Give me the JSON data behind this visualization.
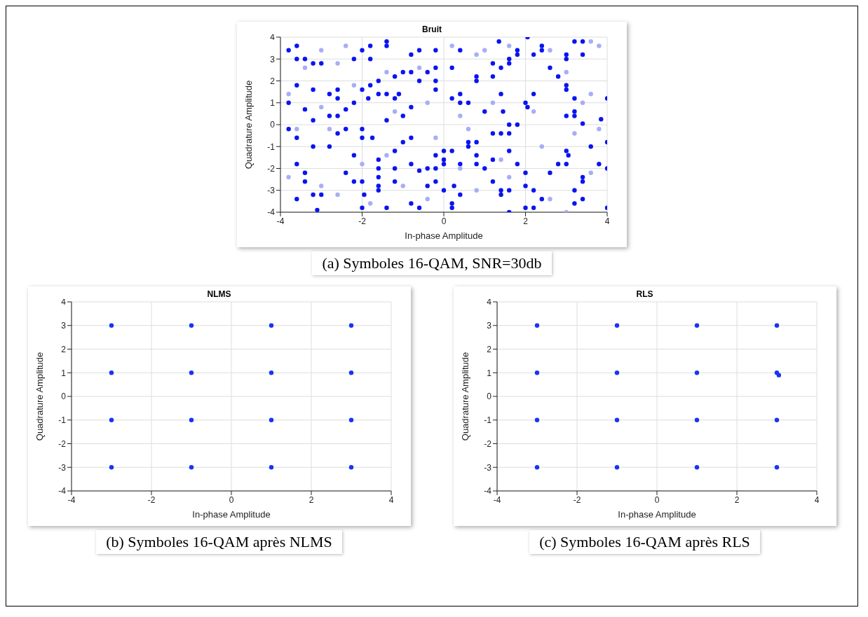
{
  "chart_data": [
    {
      "type": "scatter",
      "title": "Bruit",
      "xlabel": "In-phase Amplitude",
      "ylabel": "Quadrature Amplitude",
      "xlim": [
        -4,
        4
      ],
      "ylim": [
        -4,
        4
      ],
      "xticks": [
        -4,
        -2,
        0,
        2,
        4
      ],
      "yticks": [
        -4,
        -3,
        -2,
        -1,
        0,
        1,
        2,
        3,
        4
      ],
      "grid": true,
      "marker": "circle",
      "annotations": [
        "(a) Symboles  16-QAM, SNR=30db"
      ],
      "series": [
        {
          "color": "#0a14f0",
          "x": [
            -3.6,
            -3.6,
            -3.8,
            -3.4,
            -3.2,
            -3.0,
            -3.2,
            -2.8,
            -3.6,
            -3.8,
            -3.4,
            -3.2,
            -3.8,
            -3.6,
            -3.2,
            -2.8,
            -3.6,
            -3.4,
            -3.4,
            -3.2,
            -3.0,
            -3.6,
            -3.1,
            -2.6,
            -2.6,
            -2.4,
            -2.2,
            -2.8,
            -2.6,
            -2.6,
            -2.4,
            -2.2,
            -2.4,
            -2.2,
            -2.0,
            -1.95,
            -2.0,
            -2.2,
            -2.0,
            -1.8,
            -1.8,
            -1.8,
            -2.0,
            -1.85,
            -1.6,
            -1.4,
            -1.6,
            -1.4,
            -1.4,
            -1.2,
            -1.0,
            -0.8,
            -1.1,
            -1.2,
            -1.0,
            -0.8,
            -1.4,
            -2.0,
            -2.0,
            -1.75,
            -0.8,
            -1.0,
            -1.2,
            -1.6,
            -1.6,
            -1.2,
            -1.6,
            -1.6,
            -1.6,
            -1.4,
            -1.2,
            -0.8,
            -0.6,
            -0.8,
            -0.6,
            -0.4,
            -0.4,
            -0.2,
            -0.2,
            -0.2,
            0,
            0.2,
            0,
            0,
            0,
            0.2,
            0.2,
            0.4,
            0.25,
            0.4,
            0.6,
            0.6,
            0.8,
            0.8,
            0.8,
            1.0,
            1.2,
            1.2,
            1.2,
            1.4,
            1.6,
            1.6,
            1.8,
            1.6,
            1.4,
            1.4,
            1.6,
            1.6,
            1.8,
            2.0,
            2.0,
            2.0,
            2.2,
            2.2,
            2.4,
            2.6,
            2.8,
            3.0,
            3.05,
            3.0,
            3.2,
            3.2,
            3.4,
            3.4,
            3.4,
            3.8,
            4.0,
            4.0,
            4.0,
            3.6,
            3.2,
            3.0,
            3.2,
            3.4,
            3.85,
            4.0,
            3.2,
            3.0,
            3.0,
            2.8,
            2.6,
            2.4,
            2.4,
            2.2,
            2.05,
            3.0,
            3.0,
            3.2,
            3.4,
            3.4,
            2.2,
            2.0,
            2.05,
            1.8,
            1.8,
            1.6,
            1.6,
            1.4,
            1.4,
            1.2,
            1.2,
            1.35,
            0.8,
            0.8,
            0.6,
            0.4,
            0.2,
            0.4,
            0.2,
            0.4,
            -0.2,
            -0.2,
            -0.2,
            -0.2,
            -0.4,
            -0.6,
            -0.6,
            -0.8,
            1.0,
            1.45
          ],
          "values": [
            3.6,
            3.0,
            3.4,
            3.0,
            2.8,
            2.8,
            1.6,
            1.4,
            1.8,
            1.0,
            0.7,
            0.2,
            -0.2,
            -0.6,
            -1.0,
            -1.0,
            -1.8,
            -2.2,
            -2.6,
            -3.2,
            -3.2,
            -3.4,
            -3.9,
            1.6,
            1.2,
            0.7,
            1.0,
            0.4,
            0.4,
            -0.4,
            -0.2,
            -1.4,
            -2.2,
            -2.6,
            -2.6,
            -3.2,
            -3.8,
            3.0,
            3.4,
            3.0,
            3.6,
            1.8,
            1.6,
            1.2,
            1.4,
            1.4,
            2.0,
            3.6,
            3.8,
            2.2,
            2.4,
            2.4,
            1.4,
            1.2,
            0.4,
            0.8,
            0.2,
            -0.2,
            -0.6,
            -0.6,
            -0.6,
            -0.8,
            -1.2,
            -1.6,
            -2.0,
            -2.0,
            -2.4,
            -2.8,
            -3.0,
            -3.8,
            -2.6,
            -3.6,
            -3.8,
            -1.8,
            -2.1,
            -2.0,
            -2.8,
            -2.6,
            -2.0,
            -1.4,
            -1.2,
            -1.2,
            -1.6,
            -1.8,
            -3.0,
            -3.6,
            -3.8,
            -3.2,
            -2.8,
            -1.8,
            -1.0,
            -0.8,
            -0.8,
            -1.4,
            -1.8,
            -2.0,
            -2.6,
            -1.6,
            -0.4,
            -0.4,
            -0.4,
            0,
            0,
            -1.2,
            -3.0,
            -3.2,
            -3.0,
            -4.0,
            -1.8,
            -2.2,
            -2.8,
            -3.8,
            -3.0,
            -3.8,
            -3.4,
            -2.2,
            -1.8,
            -1.2,
            -1.4,
            -1.8,
            -3.0,
            -3.6,
            -2.4,
            -2.6,
            -3.4,
            -1.8,
            -2.0,
            -3.8,
            -0.8,
            -1.0,
            0.4,
            0.4,
            0.6,
            0.05,
            0.25,
            1.2,
            1.2,
            1.6,
            1.8,
            2.2,
            2.6,
            3.4,
            3.6,
            3.2,
            4.0,
            3.2,
            3.0,
            3.8,
            3.8,
            3.2,
            1.4,
            1.0,
            0.8,
            3.4,
            3.2,
            2.8,
            3.0,
            2.6,
            1.4,
            2.2,
            2.8,
            3.8,
            2.2,
            2.0,
            1.0,
            1.4,
            1.2,
            1.0,
            2.6,
            3.4,
            3.4,
            2.0,
            2.6,
            1.6,
            2.4,
            2.0,
            3.4,
            3.2,
            0.6,
            0.6
          ]
        },
        {
          "color": "#a8aef5",
          "x": [
            -3.4,
            -3.0,
            -2.6,
            -2.4,
            -1.4,
            -0.6,
            0.2,
            0.8,
            1.0,
            1.6,
            2.6,
            3.0,
            3.6,
            3.8,
            -3.8,
            -3.0,
            -2.2,
            -1.2,
            -0.4,
            0.4,
            1.2,
            2.2,
            3.6,
            3.4,
            -3.6,
            -2.8,
            -1.4,
            -0.2,
            0.6,
            1.4,
            2.4,
            3.2,
            3.8,
            -3.8,
            -3.0,
            -2.0,
            -1.0,
            -0.4,
            0.8,
            1.6,
            2.6,
            3.0,
            3.6,
            -2.6,
            -1.8,
            0.4
          ],
          "values": [
            2.6,
            3.4,
            2.8,
            3.6,
            2.4,
            2.6,
            3.6,
            3.2,
            3.4,
            3.6,
            3.4,
            2.4,
            3.8,
            3.6,
            1.4,
            0.8,
            1.8,
            0.6,
            1.0,
            0.4,
            1.0,
            0.6,
            1.4,
            1.0,
            -0.2,
            -0.2,
            -1.4,
            -0.6,
            -0.2,
            -1.6,
            -1.0,
            -0.4,
            -0.2,
            -2.4,
            -2.8,
            -1.8,
            -2.8,
            -3.4,
            -3.0,
            -2.4,
            -3.4,
            -4.0,
            -2.2,
            -3.2,
            -3.6,
            -2.0
          ]
        }
      ]
    },
    {
      "type": "scatter",
      "title": "NLMS",
      "xlabel": "In-phase Amplitude",
      "ylabel": "Quadrature Amplitude",
      "xlim": [
        -4,
        4
      ],
      "ylim": [
        -4,
        4
      ],
      "xticks": [
        -4,
        -2,
        0,
        2,
        4
      ],
      "yticks": [
        -4,
        -3,
        -2,
        -1,
        0,
        1,
        2,
        3,
        4
      ],
      "grid": true,
      "marker": "circle",
      "annotations": [
        "(b) Symboles  16-QAM après NLMS"
      ],
      "series": [
        {
          "color": "#1a33f5",
          "x": [
            -3,
            -1,
            1,
            3,
            -3,
            -1,
            1,
            3,
            -3,
            -1,
            1,
            3,
            -3,
            -1,
            1,
            3
          ],
          "values": [
            3,
            3,
            3,
            3,
            1,
            1,
            1,
            1,
            -1,
            -1,
            -1,
            -1,
            -3,
            -3,
            -3,
            -3
          ]
        }
      ]
    },
    {
      "type": "scatter",
      "title": "RLS",
      "xlabel": "In-phase Amplitude",
      "ylabel": "Quadrature Amplitude",
      "xlim": [
        -4,
        4
      ],
      "ylim": [
        -4,
        4
      ],
      "xticks": [
        -4,
        -2,
        0,
        2,
        4
      ],
      "yticks": [
        -4,
        -3,
        -2,
        -1,
        0,
        1,
        2,
        3,
        4
      ],
      "grid": true,
      "marker": "circle",
      "annotations": [
        "(c) Symboles  16-QAM après RLS"
      ],
      "series": [
        {
          "color": "#1a33f5",
          "x": [
            -3,
            -1,
            1,
            3,
            -3,
            -1,
            1,
            3,
            3.05,
            -3,
            -1,
            1,
            3,
            -3,
            -1,
            1,
            3
          ],
          "values": [
            3,
            3,
            3,
            3,
            1,
            1,
            1,
            1,
            0.9,
            -1,
            -1,
            -1,
            -1,
            -3,
            -3,
            -3,
            -3
          ]
        }
      ]
    }
  ]
}
